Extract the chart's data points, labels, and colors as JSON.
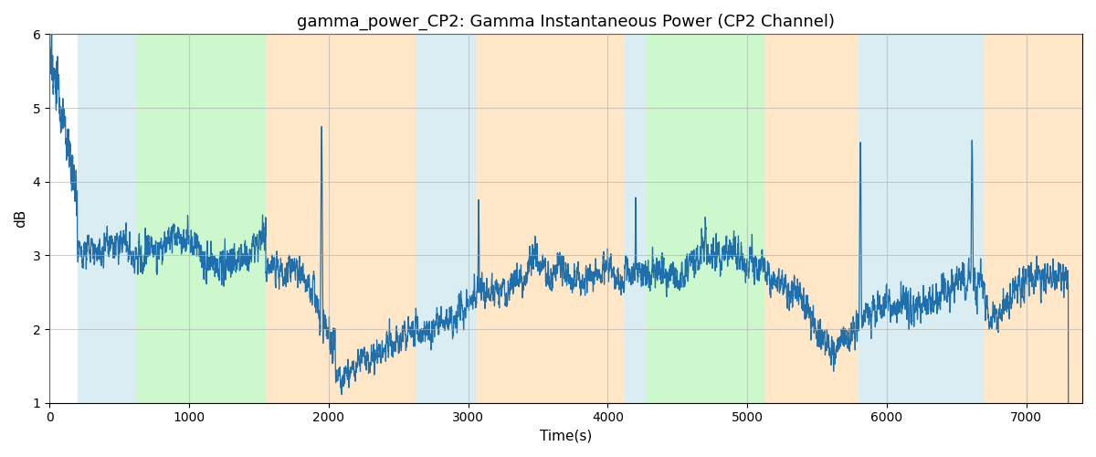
{
  "title": "gamma_power_CP2: Gamma Instantaneous Power (CP2 Channel)",
  "xlabel": "Time(s)",
  "ylabel": "dB",
  "xlim": [
    0,
    7400
  ],
  "ylim": [
    1,
    6
  ],
  "yticks": [
    1,
    2,
    3,
    4,
    5,
    6
  ],
  "background_color": "#ffffff",
  "line_color": "#1f6fad",
  "line_width": 0.9,
  "title_fontsize": 13,
  "label_fontsize": 11,
  "regions": [
    {
      "xmin": 200,
      "xmax": 620,
      "color": "#add8e6",
      "alpha": 0.45
    },
    {
      "xmin": 620,
      "xmax": 1550,
      "color": "#90ee90",
      "alpha": 0.45
    },
    {
      "xmin": 1550,
      "xmax": 2620,
      "color": "#ffd59b",
      "alpha": 0.55
    },
    {
      "xmin": 2620,
      "xmax": 3060,
      "color": "#add8e6",
      "alpha": 0.45
    },
    {
      "xmin": 3060,
      "xmax": 4120,
      "color": "#ffd59b",
      "alpha": 0.55
    },
    {
      "xmin": 4120,
      "xmax": 4280,
      "color": "#add8e6",
      "alpha": 0.45
    },
    {
      "xmin": 4280,
      "xmax": 5130,
      "color": "#90ee90",
      "alpha": 0.45
    },
    {
      "xmin": 5130,
      "xmax": 5800,
      "color": "#ffd59b",
      "alpha": 0.55
    },
    {
      "xmin": 5800,
      "xmax": 6700,
      "color": "#add8e6",
      "alpha": 0.45
    },
    {
      "xmin": 6700,
      "xmax": 7400,
      "color": "#ffd59b",
      "alpha": 0.55
    }
  ],
  "grid_color": "#b0b0b0",
  "grid_alpha": 0.6
}
